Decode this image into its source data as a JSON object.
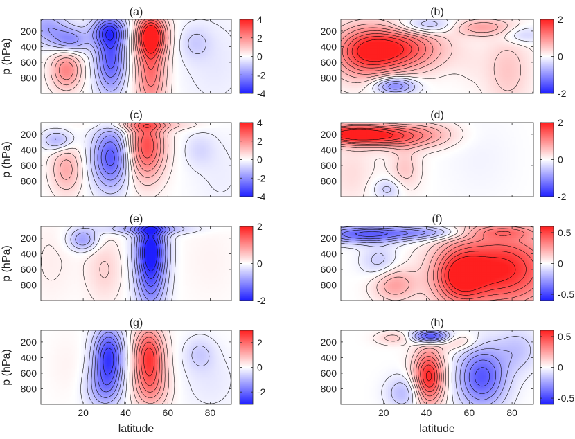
{
  "figure": {
    "xlabel": "latitude",
    "colors": {
      "negative": "#1f1fff",
      "neutral": "#ffffff",
      "positive": "#ff1f1f",
      "contour": "#000000"
    }
  },
  "chart_data": [
    {
      "panel": "(a)",
      "type": "heatmap",
      "xlabel": "",
      "ylabel": "p (hPa)",
      "x_range": [
        0,
        90
      ],
      "y_range": [
        1000,
        50
      ],
      "y_ticks": [
        "200",
        "400",
        "600",
        "800"
      ],
      "x_ticks": [],
      "colorbar": {
        "range": [
          -4,
          4
        ],
        "ticks": [
          "4",
          "2",
          "0",
          "-2",
          "-4"
        ]
      },
      "features": [
        {
          "lat": 12,
          "p": 700,
          "value": 2.2,
          "wx": 5,
          "wp": 180
        },
        {
          "lat": 3,
          "p": 150,
          "value": -1.6,
          "wx": 7,
          "wp": 150
        },
        {
          "lat": 14,
          "p": 320,
          "value": -2.0,
          "wx": 6,
          "wp": 110
        },
        {
          "lat": 33,
          "p": 550,
          "value": -3.0,
          "wx": 5,
          "wp": 320
        },
        {
          "lat": 32,
          "p": 200,
          "value": -2.2,
          "wx": 6,
          "wp": 130
        },
        {
          "lat": 52,
          "p": 250,
          "value": 3.6,
          "wx": 5,
          "wp": 180
        },
        {
          "lat": 52,
          "p": 700,
          "value": 2.6,
          "wx": 5,
          "wp": 400
        },
        {
          "lat": 73,
          "p": 350,
          "value": -0.7,
          "wx": 5,
          "wp": 150
        },
        {
          "lat": 82,
          "p": 600,
          "value": -0.4,
          "wx": 12,
          "wp": 450
        }
      ]
    },
    {
      "panel": "(b)",
      "type": "heatmap",
      "xlabel": "",
      "ylabel": "",
      "x_range": [
        0,
        90
      ],
      "y_range": [
        1000,
        50
      ],
      "y_ticks": [
        "200",
        "400",
        "600",
        "800"
      ],
      "x_ticks": [],
      "colorbar": {
        "range": [
          -2,
          2
        ],
        "ticks": [
          "2",
          "0",
          "-2"
        ]
      },
      "features": [
        {
          "lat": 25,
          "p": 430,
          "value": 1.8,
          "wx": 15,
          "wp": 200
        },
        {
          "lat": 10,
          "p": 500,
          "value": 1.0,
          "wx": 10,
          "wp": 250
        },
        {
          "lat": 25,
          "p": 900,
          "value": -1.2,
          "wx": 7,
          "wp": 80
        },
        {
          "lat": 40,
          "p": 130,
          "value": -0.8,
          "wx": 10,
          "wp": 80
        },
        {
          "lat": 65,
          "p": 150,
          "value": 0.8,
          "wx": 10,
          "wp": 80
        },
        {
          "lat": 78,
          "p": 700,
          "value": 0.5,
          "wx": 8,
          "wp": 350
        },
        {
          "lat": 60,
          "p": 650,
          "value": 0.1,
          "wx": 5,
          "wp": 200
        },
        {
          "lat": 85,
          "p": 250,
          "value": -0.5,
          "wx": 7,
          "wp": 80
        }
      ]
    },
    {
      "panel": "(c)",
      "type": "heatmap",
      "xlabel": "",
      "ylabel": "p (hPa)",
      "x_range": [
        0,
        90
      ],
      "y_range": [
        1000,
        50
      ],
      "y_ticks": [
        "200",
        "400",
        "600",
        "800"
      ],
      "x_ticks": [],
      "colorbar": {
        "range": [
          -4,
          4
        ],
        "ticks": [
          "4",
          "2",
          "0",
          "-2",
          "-4"
        ]
      },
      "features": [
        {
          "lat": 12,
          "p": 650,
          "value": 1.5,
          "wx": 5,
          "wp": 220
        },
        {
          "lat": 8,
          "p": 280,
          "value": -1.5,
          "wx": 5,
          "wp": 90
        },
        {
          "lat": 33,
          "p": 500,
          "value": -3.0,
          "wx": 6,
          "wp": 280
        },
        {
          "lat": 50,
          "p": 350,
          "value": 3.2,
          "wx": 6,
          "wp": 300
        },
        {
          "lat": 50,
          "p": 80,
          "value": 1.2,
          "wx": 15,
          "wp": 50
        },
        {
          "lat": 75,
          "p": 400,
          "value": -0.6,
          "wx": 5,
          "wp": 150
        },
        {
          "lat": 85,
          "p": 700,
          "value": -0.3,
          "wx": 10,
          "wp": 400
        }
      ]
    },
    {
      "panel": "(d)",
      "type": "heatmap",
      "xlabel": "",
      "ylabel": "",
      "x_range": [
        0,
        90
      ],
      "y_range": [
        1000,
        50
      ],
      "y_ticks": [
        "200",
        "400",
        "600",
        "800"
      ],
      "x_ticks": [],
      "colorbar": {
        "range": [
          -2,
          2
        ],
        "ticks": [
          "2",
          "0",
          "-2"
        ]
      },
      "features": [
        {
          "lat": 5,
          "p": 200,
          "value": 2.0,
          "wx": 14,
          "wp": 90
        },
        {
          "lat": 25,
          "p": 230,
          "value": 1.0,
          "wx": 12,
          "wp": 110
        },
        {
          "lat": 42,
          "p": 200,
          "value": 0.5,
          "wx": 10,
          "wp": 120
        },
        {
          "lat": 30,
          "p": 650,
          "value": 0.5,
          "wx": 5,
          "wp": 200
        },
        {
          "lat": 22,
          "p": 900,
          "value": -0.5,
          "wx": 5,
          "wp": 100
        },
        {
          "lat": 5,
          "p": 700,
          "value": 0.3,
          "wx": 8,
          "wp": 300
        },
        {
          "lat": 65,
          "p": 500,
          "value": -0.1,
          "wx": 12,
          "wp": 400
        }
      ]
    },
    {
      "panel": "(e)",
      "type": "heatmap",
      "xlabel": "",
      "ylabel": "p (hPa)",
      "x_range": [
        0,
        90
      ],
      "y_range": [
        1000,
        50
      ],
      "y_ticks": [
        "200",
        "400",
        "600",
        "800"
      ],
      "x_ticks": [],
      "colorbar": {
        "range": [
          -2,
          2
        ],
        "ticks": [
          "2",
          "0",
          "-2"
        ]
      },
      "features": [
        {
          "lat": 52,
          "p": 300,
          "value": -1.8,
          "wx": 5,
          "wp": 250
        },
        {
          "lat": 52,
          "p": 750,
          "value": -1.2,
          "wx": 5,
          "wp": 300
        },
        {
          "lat": 50,
          "p": 80,
          "value": -0.8,
          "wx": 15,
          "wp": 50
        },
        {
          "lat": 20,
          "p": 220,
          "value": -0.9,
          "wx": 5,
          "wp": 100
        },
        {
          "lat": 30,
          "p": 600,
          "value": 0.4,
          "wx": 6,
          "wp": 300
        },
        {
          "lat": 5,
          "p": 500,
          "value": 0.15,
          "wx": 8,
          "wp": 400
        },
        {
          "lat": 80,
          "p": 500,
          "value": 0.1,
          "wx": 10,
          "wp": 400
        }
      ]
    },
    {
      "panel": "(f)",
      "type": "heatmap",
      "xlabel": "",
      "ylabel": "",
      "x_range": [
        0,
        90
      ],
      "y_range": [
        1000,
        50
      ],
      "y_ticks": [
        "200",
        "400",
        "600",
        "800"
      ],
      "x_ticks": [],
      "colorbar": {
        "range": [
          -0.6,
          0.6
        ],
        "ticks": [
          "0.5",
          "0",
          "-0.5"
        ]
      },
      "features": [
        {
          "lat": 75,
          "p": 600,
          "value": 0.6,
          "wx": 18,
          "wp": 350
        },
        {
          "lat": 55,
          "p": 700,
          "value": 0.4,
          "wx": 8,
          "wp": 250
        },
        {
          "lat": 10,
          "p": 150,
          "value": -0.4,
          "wx": 15,
          "wp": 80
        },
        {
          "lat": 40,
          "p": 130,
          "value": -0.25,
          "wx": 15,
          "wp": 60
        },
        {
          "lat": 25,
          "p": 800,
          "value": 0.25,
          "wx": 7,
          "wp": 150
        },
        {
          "lat": 18,
          "p": 500,
          "value": -0.15,
          "wx": 6,
          "wp": 150
        },
        {
          "lat": 75,
          "p": 120,
          "value": 0.2,
          "wx": 12,
          "wp": 60
        }
      ]
    },
    {
      "panel": "(g)",
      "type": "heatmap",
      "xlabel": "latitude",
      "ylabel": "p (hPa)",
      "x_range": [
        0,
        90
      ],
      "y_range": [
        1000,
        50
      ],
      "y_ticks": [
        "200",
        "400",
        "600",
        "800"
      ],
      "x_ticks": [
        "20",
        "40",
        "60",
        "80"
      ],
      "colorbar": {
        "range": [
          -3,
          3
        ],
        "ticks": [
          "2",
          "0",
          "-2"
        ]
      },
      "features": [
        {
          "lat": 32,
          "p": 380,
          "value": -2.6,
          "wx": 5,
          "wp": 260
        },
        {
          "lat": 51,
          "p": 380,
          "value": 2.6,
          "wx": 5,
          "wp": 260
        },
        {
          "lat": 30,
          "p": 800,
          "value": -1.2,
          "wx": 6,
          "wp": 200
        },
        {
          "lat": 52,
          "p": 800,
          "value": 1.2,
          "wx": 6,
          "wp": 200
        },
        {
          "lat": 75,
          "p": 350,
          "value": -0.6,
          "wx": 5,
          "wp": 150
        },
        {
          "lat": 80,
          "p": 700,
          "value": -0.3,
          "wx": 10,
          "wp": 300
        },
        {
          "lat": 12,
          "p": 500,
          "value": 0.15,
          "wx": 6,
          "wp": 300
        }
      ]
    },
    {
      "panel": "(h)",
      "type": "heatmap",
      "xlabel": "latitude",
      "ylabel": "",
      "x_range": [
        0,
        90
      ],
      "y_range": [
        1000,
        50
      ],
      "y_ticks": [
        "200",
        "400",
        "600",
        "800"
      ],
      "x_ticks": [
        "20",
        "40",
        "60",
        "80"
      ],
      "colorbar": {
        "range": [
          -0.6,
          0.6
        ],
        "ticks": [
          "0.5",
          "0",
          "-0.5"
        ]
      },
      "features": [
        {
          "lat": 41,
          "p": 650,
          "value": 0.6,
          "wx": 5,
          "wp": 250
        },
        {
          "lat": 66,
          "p": 650,
          "value": -0.45,
          "wx": 8,
          "wp": 280
        },
        {
          "lat": 42,
          "p": 130,
          "value": -0.55,
          "wx": 6,
          "wp": 60
        },
        {
          "lat": 55,
          "p": 200,
          "value": 0.15,
          "wx": 7,
          "wp": 80
        },
        {
          "lat": 25,
          "p": 150,
          "value": 0.15,
          "wx": 6,
          "wp": 60
        },
        {
          "lat": 30,
          "p": 850,
          "value": -0.2,
          "wx": 6,
          "wp": 150
        },
        {
          "lat": 83,
          "p": 300,
          "value": -0.15,
          "wx": 7,
          "wp": 200
        }
      ]
    }
  ]
}
